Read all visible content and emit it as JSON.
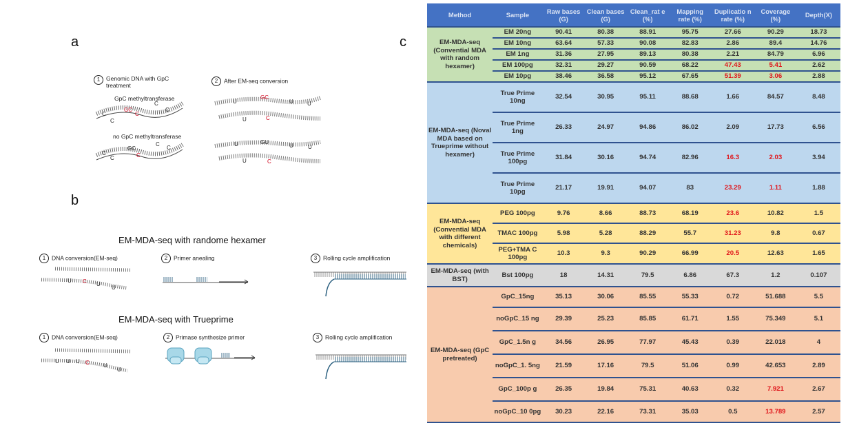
{
  "panels": {
    "a": {
      "letter": "a",
      "step1": {
        "num": "1",
        "title": "Genomic DNA with GpC treatment",
        "sub1": "GpC methyltransferase",
        "sub2": "no GpC methyltransferase"
      },
      "step2": {
        "num": "2",
        "title": "After EM-seq conversion"
      }
    },
    "b": {
      "letter": "b",
      "section1": {
        "title": "EM-MDA-seq with randome hexamer",
        "steps": [
          {
            "num": "1",
            "label": "DNA conversion(EM-seq)"
          },
          {
            "num": "2",
            "label": "Primer anealing"
          },
          {
            "num": "3",
            "label": "Rolling cycle amplification"
          }
        ]
      },
      "section2": {
        "title": "EM-MDA-seq with Trueprime",
        "steps": [
          {
            "num": "1",
            "label": "DNA conversion(EM-seq)"
          },
          {
            "num": "2",
            "label": "Primase synthesize primer"
          },
          {
            "num": "3",
            "label": "Rolling cycle amplification"
          }
        ]
      }
    },
    "c": {
      "letter": "c"
    }
  },
  "table": {
    "headers": [
      "Method",
      "Sample",
      "Raw bases (G)",
      "Clean bases (G)",
      "Clean_rat e (%)",
      "Mapping rate (%)",
      "Duplicatio n rate (%)",
      "Coverage (%)",
      "Depth(X)"
    ],
    "groups": [
      {
        "method": "EM-MDA-seq (Convential MDA with random hexamer)",
        "theme": "green",
        "rows": [
          {
            "sample": "EM 20ng",
            "values": [
              "90.41",
              "80.38",
              "88.91",
              "95.75",
              "27.66",
              "90.29",
              "18.73"
            ],
            "red": []
          },
          {
            "sample": "EM 10ng",
            "values": [
              "63.64",
              "57.33",
              "90.08",
              "82.83",
              "2.86",
              "89.4",
              "14.76"
            ],
            "red": []
          },
          {
            "sample": "EM 1ng",
            "values": [
              "31.36",
              "27.95",
              "89.13",
              "80.38",
              "2.21",
              "84.79",
              "6.96"
            ],
            "red": []
          },
          {
            "sample": "EM 100pg",
            "values": [
              "32.31",
              "29.27",
              "90.59",
              "68.22",
              "47.43",
              "5.41",
              "2.62"
            ],
            "red": [
              4,
              5
            ]
          },
          {
            "sample": "EM 10pg",
            "values": [
              "38.46",
              "36.58",
              "95.12",
              "67.65",
              "51.39",
              "3.06",
              "2.88"
            ],
            "red": [
              4,
              5
            ]
          }
        ]
      },
      {
        "method": "EM-MDA-seq (Noval MDA based on Trueprime without hexamer)",
        "theme": "blue",
        "rows": [
          {
            "sample": "True Prime 10ng",
            "values": [
              "32.54",
              "30.95",
              "95.11",
              "88.68",
              "1.66",
              "84.57",
              "8.48"
            ],
            "red": []
          },
          {
            "sample": "True Prime 1ng",
            "values": [
              "26.33",
              "24.97",
              "94.86",
              "86.02",
              "2.09",
              "17.73",
              "6.56"
            ],
            "red": []
          },
          {
            "sample": "True Prime 100pg",
            "values": [
              "31.84",
              "30.16",
              "94.74",
              "82.96",
              "16.3",
              "2.03",
              "3.94"
            ],
            "red": [
              4,
              5
            ]
          },
          {
            "sample": "True Prime 10pg",
            "values": [
              "21.17",
              "19.91",
              "94.07",
              "83",
              "23.29",
              "1.11",
              "1.88"
            ],
            "red": [
              4,
              5
            ]
          }
        ]
      },
      {
        "method": "EM-MDA-seq (Convential MDA with different chemicals)",
        "theme": "yellow",
        "rows": [
          {
            "sample": "PEG 100pg",
            "values": [
              "9.76",
              "8.66",
              "88.73",
              "68.19",
              "23.6",
              "10.82",
              "1.5"
            ],
            "red": [
              4
            ]
          },
          {
            "sample": "TMAC 100pg",
            "values": [
              "5.98",
              "5.28",
              "88.29",
              "55.7",
              "31.23",
              "9.8",
              "0.67"
            ],
            "red": [
              4
            ]
          },
          {
            "sample": "PEG+TMA C 100pg",
            "values": [
              "10.3",
              "9.3",
              "90.29",
              "66.99",
              "20.5",
              "12.63",
              "1.65"
            ],
            "red": [
              4
            ]
          }
        ]
      },
      {
        "method": "EM-MDA-seq (with BST)",
        "theme": "gray",
        "rows": [
          {
            "sample": "Bst 100pg",
            "values": [
              "18",
              "14.31",
              "79.5",
              "6.86",
              "67.3",
              "1.2",
              "0.107"
            ],
            "red": []
          }
        ]
      },
      {
        "method": "EM-MDA-seq (GpC pretreated)",
        "theme": "orange",
        "rows": [
          {
            "sample": "GpC_15ng",
            "values": [
              "35.13",
              "30.06",
              "85.55",
              "55.33",
              "0.72",
              "51.688",
              "5.5"
            ],
            "red": []
          },
          {
            "sample": "noGpC_15 ng",
            "values": [
              "29.39",
              "25.23",
              "85.85",
              "61.71",
              "1.55",
              "75.349",
              "5.1"
            ],
            "red": []
          },
          {
            "sample": "GpC_1.5n g",
            "values": [
              "34.56",
              "26.95",
              "77.97",
              "45.43",
              "0.39",
              "22.018",
              "4"
            ],
            "red": []
          },
          {
            "sample": "noGpC_1. 5ng",
            "values": [
              "21.59",
              "17.16",
              "79.5",
              "51.06",
              "0.99",
              "42.653",
              "2.89"
            ],
            "red": []
          },
          {
            "sample": "GpC_100p g",
            "values": [
              "26.35",
              "19.84",
              "75.31",
              "40.63",
              "0.32",
              "7.921",
              "2.67"
            ],
            "red": [
              5
            ]
          },
          {
            "sample": "noGpC_10 0pg",
            "values": [
              "30.23",
              "22.16",
              "73.31",
              "35.03",
              "0.5",
              "13.789",
              "2.57"
            ],
            "red": [
              5
            ]
          }
        ]
      }
    ]
  }
}
